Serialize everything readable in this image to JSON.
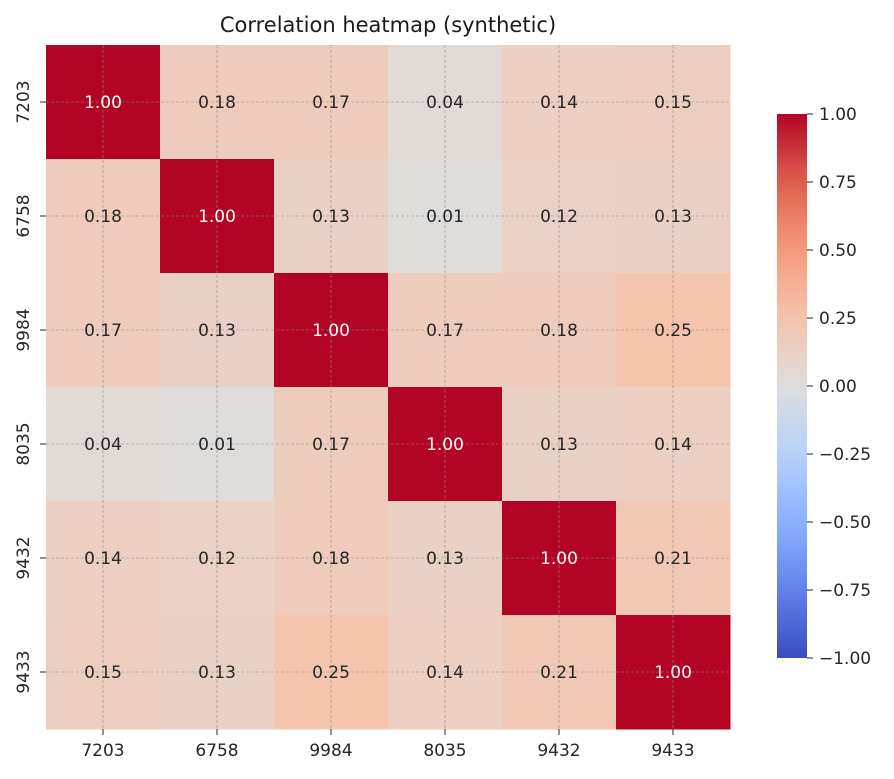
{
  "chart_data": {
    "type": "heatmap",
    "title": "Correlation heatmap (synthetic)",
    "xlabel": "",
    "ylabel": "",
    "x_categories": [
      "7203",
      "6758",
      "9984",
      "8035",
      "9432",
      "9433"
    ],
    "y_categories": [
      "7203",
      "6758",
      "9984",
      "8035",
      "9432",
      "9433"
    ],
    "values": [
      [
        1.0,
        0.18,
        0.17,
        0.04,
        0.14,
        0.15
      ],
      [
        0.18,
        1.0,
        0.13,
        0.01,
        0.12,
        0.13
      ],
      [
        0.17,
        0.13,
        1.0,
        0.17,
        0.18,
        0.25
      ],
      [
        0.04,
        0.01,
        0.17,
        1.0,
        0.13,
        0.14
      ],
      [
        0.14,
        0.12,
        0.18,
        0.13,
        1.0,
        0.21
      ],
      [
        0.15,
        0.13,
        0.25,
        0.14,
        0.21,
        1.0
      ]
    ],
    "annotation_format": "0.00",
    "colormap": "coolwarm",
    "vmin": -1.0,
    "vmax": 1.0,
    "colorbar": {
      "ticks": [
        1.0,
        0.75,
        0.5,
        0.25,
        0.0,
        -0.25,
        -0.5,
        -0.75,
        -1.0
      ],
      "tick_labels": [
        "1.00",
        "0.75",
        "0.50",
        "0.25",
        "0.00",
        "−0.25",
        "−0.50",
        "−0.75",
        "−1.00"
      ]
    },
    "grid": true,
    "legend": "colorbar-right"
  }
}
